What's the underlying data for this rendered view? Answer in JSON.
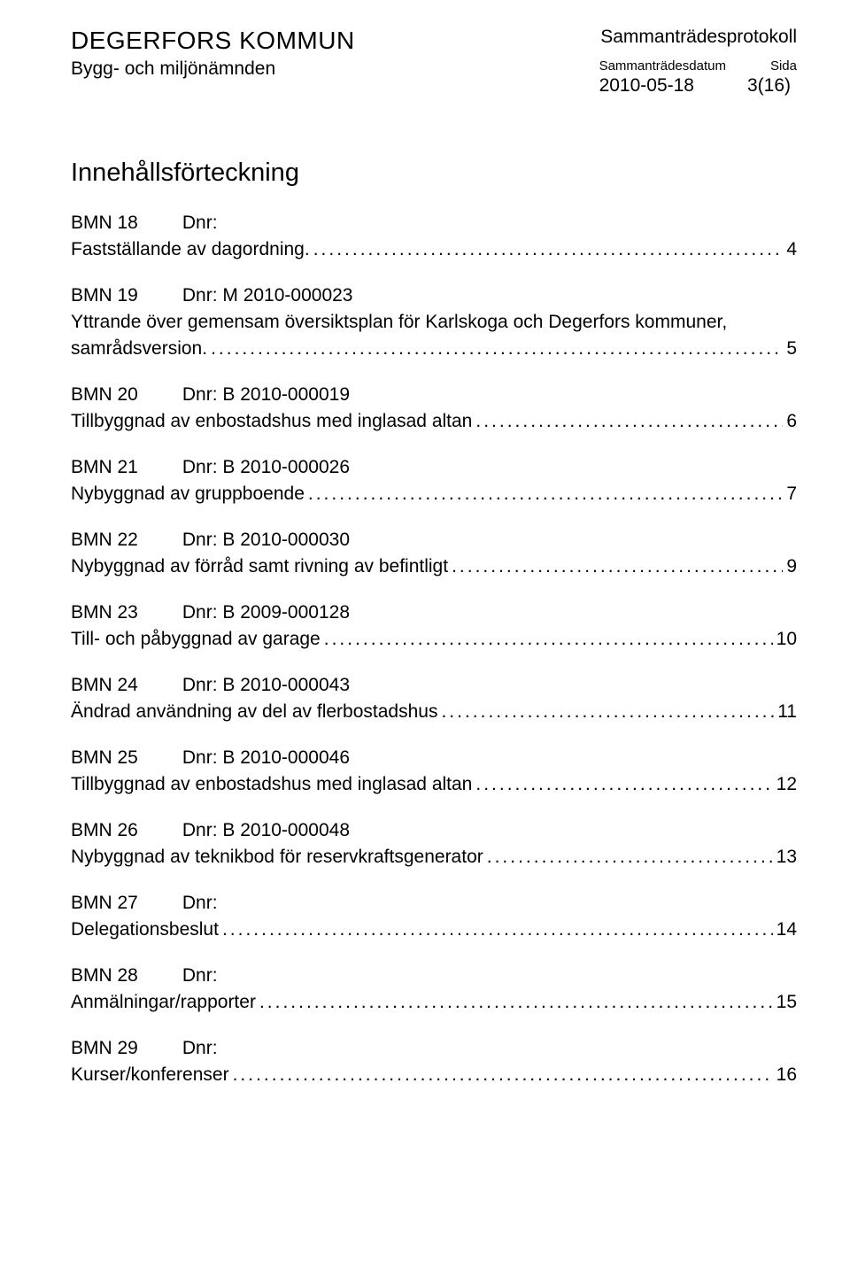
{
  "header": {
    "org": "DEGERFORS KOMMUN",
    "protokoll": "Sammanträdesprotokoll",
    "committee": "Bygg- och miljönämnden",
    "datum_label": "Sammanträdesdatum",
    "sida_label": "Sida",
    "datum_value": "2010-05-18",
    "sida_value": "3(16)"
  },
  "toc_title": "Innehållsförteckning",
  "entries": [
    {
      "num": "BMN 18",
      "dnr": "Dnr:",
      "title": "Fastställande av dagordning.",
      "page": "4"
    },
    {
      "num": "BMN 19",
      "dnr": "Dnr: M 2010-000023",
      "title_line1": "Yttrande över gemensam översiktsplan för Karlskoga och Degerfors kommuner,",
      "title": "samrådsversion.",
      "page": "5"
    },
    {
      "num": "BMN 20",
      "dnr": "Dnr: B 2010-000019",
      "title": "Tillbyggnad av enbostadshus med inglasad altan",
      "page": "6"
    },
    {
      "num": "BMN 21",
      "dnr": "Dnr: B 2010-000026",
      "title": "Nybyggnad av gruppboende",
      "page": "7"
    },
    {
      "num": "BMN 22",
      "dnr": "Dnr: B 2010-000030",
      "title": "Nybyggnad av förråd samt rivning av befintligt",
      "page": "9"
    },
    {
      "num": "BMN 23",
      "dnr": "Dnr: B 2009-000128",
      "title": "Till- och påbyggnad av garage",
      "page": "10"
    },
    {
      "num": "BMN 24",
      "dnr": "Dnr: B 2010-000043",
      "title": "Ändrad användning av del av flerbostadshus",
      "page": "11"
    },
    {
      "num": "BMN 25",
      "dnr": "Dnr: B 2010-000046",
      "title": "Tillbyggnad av enbostadshus med inglasad altan",
      "page": "12"
    },
    {
      "num": "BMN 26",
      "dnr": "Dnr: B 2010-000048",
      "title": "Nybyggnad av teknikbod för reservkraftsgenerator",
      "page": "13"
    },
    {
      "num": "BMN 27",
      "dnr": "Dnr:",
      "title": "Delegationsbeslut",
      "page": "14"
    },
    {
      "num": "BMN 28",
      "dnr": "Dnr:",
      "title": "Anmälningar/rapporter",
      "page": "15"
    },
    {
      "num": "BMN 29",
      "dnr": "Dnr:",
      "title": "Kurser/konferenser",
      "page": "16"
    }
  ],
  "dots": "................................................................................................................................................................"
}
